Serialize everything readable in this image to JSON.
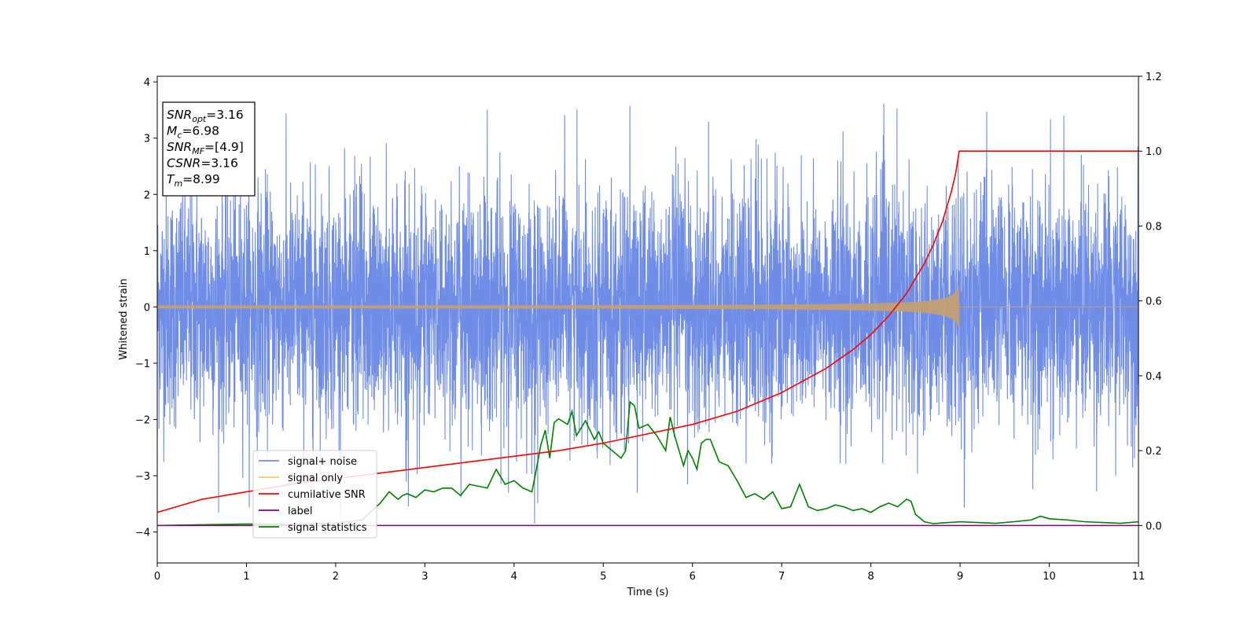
{
  "chart_data": {
    "type": "line",
    "xlabel": "Time (s)",
    "ylabel": "Whitened strain",
    "xlim": [
      0,
      11
    ],
    "ylim_left": [
      -4.55,
      4.1
    ],
    "ylim_right": [
      -0.1,
      1.2
    ],
    "x_ticks": [
      0,
      1,
      2,
      3,
      4,
      5,
      6,
      7,
      8,
      9,
      10,
      11
    ],
    "y_ticks_left": [
      -4,
      -3,
      -2,
      -1,
      0,
      1,
      2,
      3,
      4
    ],
    "y_ticks_right": [
      0.0,
      0.2,
      0.4,
      0.6,
      0.8,
      1.0,
      1.2
    ],
    "grid": false,
    "legend_position": "lower-left",
    "colors": {
      "noise": "#6f8de6",
      "signal": "#f5c86e",
      "cum_snr": "#ff0000",
      "label": "#800080",
      "stats": "#008000"
    },
    "series": [
      {
        "key": "noise",
        "name": "signal+ noise",
        "axis": "left",
        "description_range": [
          -4.15,
          3.72
        ]
      },
      {
        "key": "signal",
        "name": "signal only",
        "axis": "left",
        "chirp_end": 8.99,
        "peak_amplitude": 0.4
      },
      {
        "key": "cum_snr",
        "name": "cumilative SNR",
        "axis": "right",
        "x": [
          0,
          0.5,
          1,
          1.5,
          2,
          2.5,
          3,
          3.5,
          4,
          4.5,
          5,
          5.5,
          6,
          6.5,
          7,
          7.5,
          7.8,
          8,
          8.2,
          8.4,
          8.6,
          8.7,
          8.8,
          8.9,
          8.95,
          8.99,
          9.0,
          11
        ],
        "y": [
          0.035,
          0.07,
          0.09,
          0.11,
          0.125,
          0.14,
          0.155,
          0.17,
          0.185,
          0.2,
          0.22,
          0.245,
          0.27,
          0.305,
          0.355,
          0.42,
          0.47,
          0.51,
          0.56,
          0.62,
          0.7,
          0.75,
          0.81,
          0.89,
          0.94,
          1.0,
          1.0,
          1.0
        ]
      },
      {
        "key": "label",
        "name": "label",
        "axis": "right",
        "x": [
          0,
          11
        ],
        "y": [
          0.0,
          0.0
        ]
      },
      {
        "key": "stats",
        "name": "signal statistics",
        "axis": "right",
        "x": [
          0,
          0.5,
          1,
          1.5,
          2,
          2.3,
          2.5,
          2.6,
          2.7,
          2.75,
          2.8,
          2.9,
          3.0,
          3.1,
          3.2,
          3.3,
          3.4,
          3.5,
          3.6,
          3.7,
          3.8,
          3.9,
          4.0,
          4.1,
          4.2,
          4.25,
          4.3,
          4.35,
          4.4,
          4.45,
          4.5,
          4.6,
          4.65,
          4.7,
          4.8,
          4.9,
          4.95,
          5.0,
          5.1,
          5.2,
          5.25,
          5.3,
          5.35,
          5.4,
          5.5,
          5.6,
          5.7,
          5.75,
          5.8,
          5.9,
          5.95,
          6.0,
          6.05,
          6.1,
          6.15,
          6.2,
          6.3,
          6.4,
          6.5,
          6.6,
          6.7,
          6.8,
          6.9,
          7.0,
          7.1,
          7.2,
          7.3,
          7.4,
          7.5,
          7.6,
          7.7,
          7.8,
          7.9,
          8.0,
          8.1,
          8.2,
          8.3,
          8.35,
          8.4,
          8.45,
          8.5,
          8.6,
          8.7,
          8.8,
          9.0,
          9.2,
          9.4,
          9.6,
          9.8,
          9.9,
          10.0,
          10.2,
          10.4,
          10.6,
          10.8,
          11.0
        ],
        "y": [
          0.0,
          0.002,
          0.004,
          0.003,
          0.007,
          0.015,
          0.06,
          0.09,
          0.07,
          0.08,
          0.085,
          0.075,
          0.095,
          0.09,
          0.1,
          0.1,
          0.08,
          0.11,
          0.105,
          0.1,
          0.15,
          0.11,
          0.12,
          0.1,
          0.09,
          0.15,
          0.215,
          0.255,
          0.18,
          0.275,
          0.285,
          0.27,
          0.305,
          0.24,
          0.28,
          0.23,
          0.25,
          0.22,
          0.2,
          0.18,
          0.2,
          0.33,
          0.32,
          0.26,
          0.27,
          0.24,
          0.2,
          0.29,
          0.24,
          0.16,
          0.2,
          0.18,
          0.15,
          0.22,
          0.23,
          0.23,
          0.17,
          0.16,
          0.12,
          0.075,
          0.085,
          0.07,
          0.09,
          0.045,
          0.05,
          0.11,
          0.05,
          0.04,
          0.045,
          0.055,
          0.05,
          0.04,
          0.045,
          0.035,
          0.05,
          0.06,
          0.05,
          0.06,
          0.07,
          0.065,
          0.03,
          0.01,
          0.005,
          0.007,
          0.01,
          0.008,
          0.006,
          0.01,
          0.015,
          0.025,
          0.018,
          0.015,
          0.01,
          0.008,
          0.006,
          0.01
        ]
      }
    ],
    "info_box": [
      {
        "main": "SNR",
        "sub": "opt",
        "value": "=3.16"
      },
      {
        "main": "M",
        "sub": "c",
        "value": "=6.98"
      },
      {
        "main": "SNR",
        "sub": "MF",
        "value": "=[4.9]"
      },
      {
        "main": "CSNR",
        "sub": "",
        "value": "=3.16"
      },
      {
        "main": "T",
        "sub": "m",
        "value": "=8.99"
      }
    ]
  }
}
